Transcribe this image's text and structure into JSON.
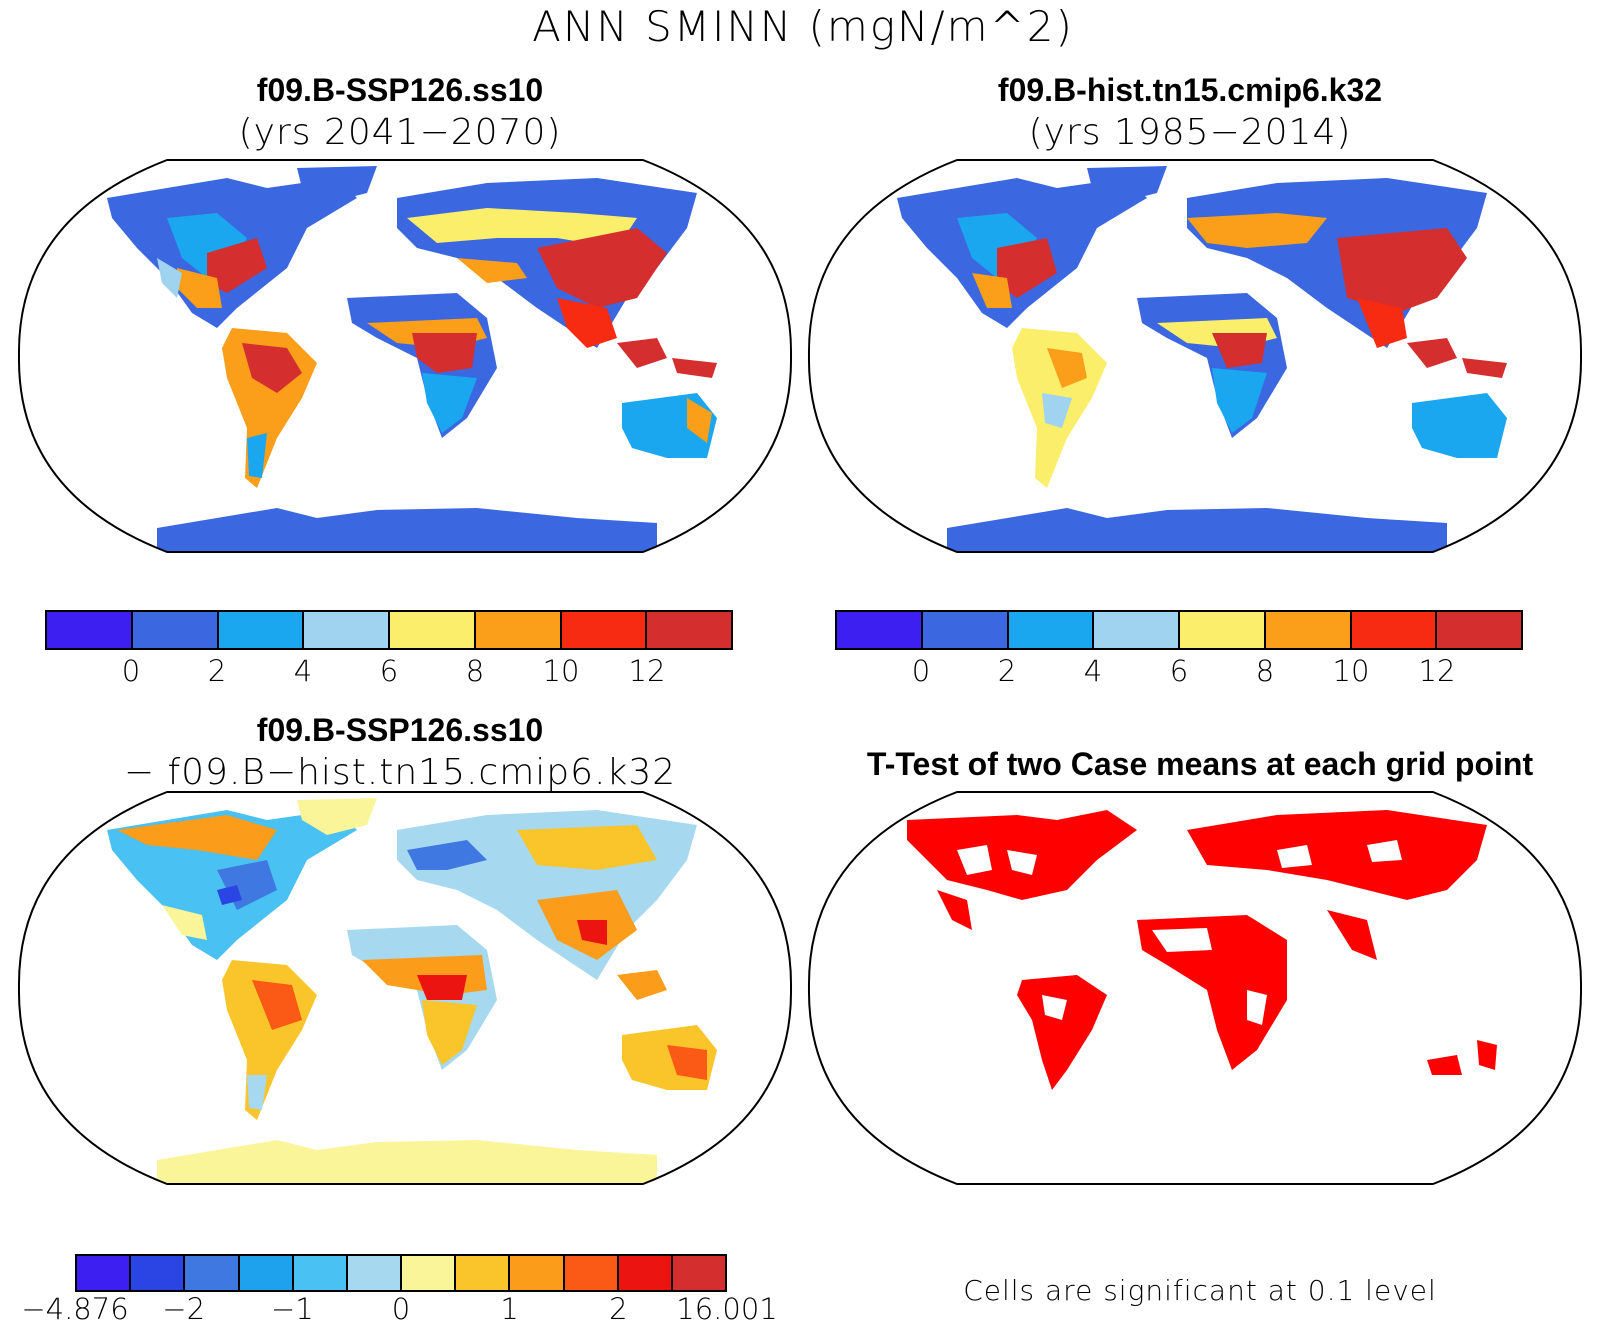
{
  "figure": {
    "title": "ANN SMINN (mgN/m^2)"
  },
  "panels": {
    "top_left": {
      "title": "f09.B-SSP126.ss10",
      "subtitle": "(yrs 2041−2070)"
    },
    "top_right": {
      "title": "f09.B-hist.tn15.cmip6.k32",
      "subtitle": "(yrs 1985−2014)"
    },
    "bottom_left": {
      "title": "f09.B-SSP126.ss10",
      "subtitle": "− f09.B−hist.tn15.cmip6.k32"
    },
    "bottom_right": {
      "title": "T-Test of two Case means at each grid point",
      "footnote": "Cells are significant at 0.1 level"
    }
  },
  "colorbars": {
    "absolute": {
      "colors": [
        "#3d1ff2",
        "#3b68e0",
        "#1ba6f0",
        "#9fd3ef",
        "#fbee6b",
        "#fb9e1a",
        "#f72b12",
        "#d42e2e"
      ],
      "labels": [
        "0",
        "2",
        "4",
        "6",
        "8",
        "10",
        "12"
      ]
    },
    "difference": {
      "colors": [
        "#3d1ff2",
        "#2a45e3",
        "#3f78e1",
        "#1fa2ee",
        "#49c1f3",
        "#a6d8ef",
        "#fbf59a",
        "#f9c52a",
        "#fb9c1a",
        "#fb5a16",
        "#ec1410",
        "#d42e2e"
      ],
      "labels": [
        "−4.876",
        "−2",
        "−1",
        "0",
        "1",
        "2",
        "16.001"
      ]
    }
  },
  "map_colors": {
    "land_base_top": "#3b68e0",
    "ocean": "#ffffff",
    "significant": "#ff0000"
  }
}
